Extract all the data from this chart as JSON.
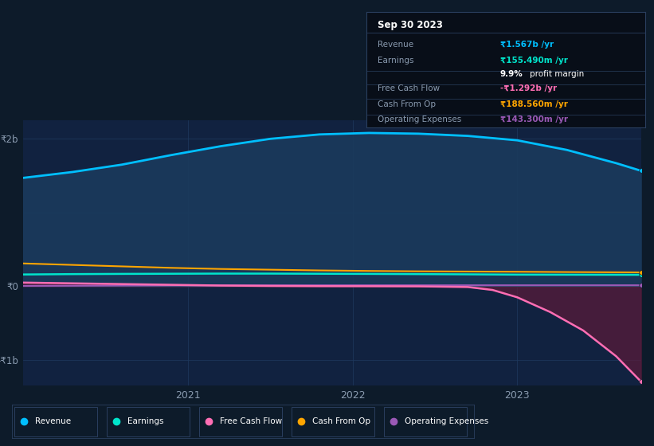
{
  "bg_color": "#0d1b2a",
  "plot_bg_color": "#112240",
  "revenue_color": "#00bfff",
  "revenue_fill": "#1a3a5c",
  "earnings_color": "#00e5cc",
  "free_cash_flow_color": "#ff6eb4",
  "free_cash_flow_fill": "#5c1a3a",
  "cash_from_op_color": "#ffa500",
  "operating_expenses_color": "#9b59b6",
  "grid_color": "#1e3a5f",
  "text_color": "#8a9bb0",
  "tooltip_bg": "#080e18",
  "tooltip_border": "#2a3f5f",
  "revenue_x": [
    2020.0,
    2020.3,
    2020.6,
    2020.9,
    2021.2,
    2021.5,
    2021.8,
    2022.1,
    2022.4,
    2022.7,
    2023.0,
    2023.3,
    2023.6,
    2023.75
  ],
  "revenue_y": [
    1470000000.0,
    1550000000.0,
    1650000000.0,
    1780000000.0,
    1900000000.0,
    2000000000.0,
    2060000000.0,
    2080000000.0,
    2070000000.0,
    2040000000.0,
    1980000000.0,
    1850000000.0,
    1670000000.0,
    1567000000.0
  ],
  "earnings_x": [
    2020.0,
    2020.3,
    2020.6,
    2020.9,
    2021.2,
    2021.5,
    2021.8,
    2022.1,
    2022.4,
    2022.7,
    2023.0,
    2023.3,
    2023.6,
    2023.75
  ],
  "earnings_y": [
    160000000.0,
    165000000.0,
    168000000.0,
    170000000.0,
    172000000.0,
    172000000.0,
    170000000.0,
    168000000.0,
    165000000.0,
    162000000.0,
    158000000.0,
    157000000.0,
    156000000.0,
    155490000.0
  ],
  "fcf_x": [
    2020.0,
    2020.3,
    2020.6,
    2020.9,
    2021.2,
    2021.5,
    2021.8,
    2022.1,
    2022.4,
    2022.7,
    2022.85,
    2023.0,
    2023.2,
    2023.4,
    2023.6,
    2023.75
  ],
  "fcf_y": [
    50000000.0,
    40000000.0,
    30000000.0,
    20000000.0,
    10000000.0,
    5000000.0,
    2000000.0,
    1000000.0,
    -1000000.0,
    -10000000.0,
    -50000000.0,
    -150000000.0,
    -350000000.0,
    -600000000.0,
    -950000000.0,
    -1292000000.0
  ],
  "cash_op_x": [
    2020.0,
    2020.3,
    2020.6,
    2020.9,
    2021.2,
    2021.5,
    2021.8,
    2022.1,
    2022.4,
    2022.7,
    2023.0,
    2023.3,
    2023.6,
    2023.75
  ],
  "cash_op_y": [
    310000000.0,
    290000000.0,
    270000000.0,
    250000000.0,
    235000000.0,
    225000000.0,
    215000000.0,
    208000000.0,
    203000000.0,
    200000000.0,
    197000000.0,
    193000000.0,
    190000000.0,
    188560000.0
  ],
  "op_exp_x": [
    2020.0,
    2020.3,
    2020.6,
    2020.9,
    2021.2,
    2021.5,
    2021.8,
    2022.1,
    2022.4,
    2022.7,
    2023.0,
    2023.3,
    2023.6,
    2023.75
  ],
  "op_exp_y": [
    5000000.0,
    7000000.0,
    10000000.0,
    12000000.0,
    13000000.0,
    13500000.0,
    13800000.0,
    14000000.0,
    14100000.0,
    14200000.0,
    14200000.0,
    14300000.0,
    14330000.0,
    14330000.0
  ],
  "legend_items": [
    {
      "label": "Revenue",
      "color": "#00bfff"
    },
    {
      "label": "Earnings",
      "color": "#00e5cc"
    },
    {
      "label": "Free Cash Flow",
      "color": "#ff6eb4"
    },
    {
      "label": "Cash From Op",
      "color": "#ffa500"
    },
    {
      "label": "Operating Expenses",
      "color": "#9b59b6"
    }
  ]
}
